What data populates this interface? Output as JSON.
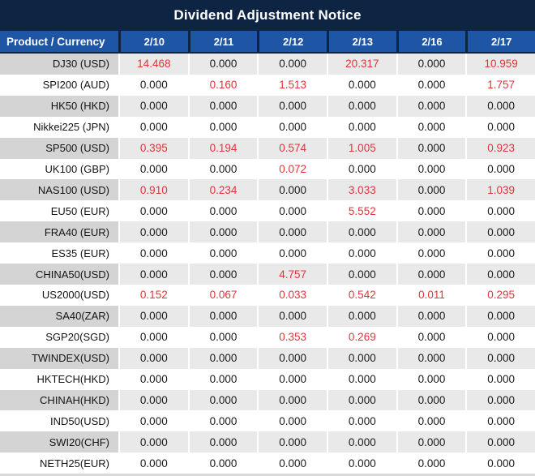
{
  "title_bar": {
    "title": "Dividend Adjustment Notice"
  },
  "colors": {
    "title_navy": "#0e2443",
    "header_blue": "#1e55a4",
    "stripe_label_gray": "#d4d4d4",
    "stripe_cell_gray": "#e9e9e9",
    "highlight_red": "#e0343a",
    "text_black": "#1a1a1a"
  },
  "chart_data": {
    "type": "table",
    "title": "Dividend Adjustment Notice",
    "columns": [
      "Product / Currency",
      "2/10",
      "2/11",
      "2/12",
      "2/13",
      "2/16",
      "2/17"
    ],
    "rows": [
      {
        "product": "DJ30 (USD)",
        "values": [
          "14.468",
          "0.000",
          "0.000",
          "20.317",
          "0.000",
          "10.959"
        ],
        "highlight": [
          true,
          false,
          false,
          true,
          false,
          true
        ]
      },
      {
        "product": "SPI200 (AUD)",
        "values": [
          "0.000",
          "0.160",
          "1.513",
          "0.000",
          "0.000",
          "1.757"
        ],
        "highlight": [
          false,
          true,
          true,
          false,
          false,
          true
        ]
      },
      {
        "product": "HK50 (HKD)",
        "values": [
          "0.000",
          "0.000",
          "0.000",
          "0.000",
          "0.000",
          "0.000"
        ],
        "highlight": [
          false,
          false,
          false,
          false,
          false,
          false
        ]
      },
      {
        "product": "Nikkei225 (JPN)",
        "values": [
          "0.000",
          "0.000",
          "0.000",
          "0.000",
          "0.000",
          "0.000"
        ],
        "highlight": [
          false,
          false,
          false,
          false,
          false,
          false
        ]
      },
      {
        "product": "SP500 (USD)",
        "values": [
          "0.395",
          "0.194",
          "0.574",
          "1.005",
          "0.000",
          "0.923"
        ],
        "highlight": [
          true,
          true,
          true,
          true,
          false,
          true
        ]
      },
      {
        "product": "UK100 (GBP)",
        "values": [
          "0.000",
          "0.000",
          "0.072",
          "0.000",
          "0.000",
          "0.000"
        ],
        "highlight": [
          false,
          false,
          true,
          false,
          false,
          false
        ]
      },
      {
        "product": "NAS100 (USD)",
        "values": [
          "0.910",
          "0.234",
          "0.000",
          "3.033",
          "0.000",
          "1.039"
        ],
        "highlight": [
          true,
          true,
          false,
          true,
          false,
          true
        ]
      },
      {
        "product": "EU50 (EUR)",
        "values": [
          "0.000",
          "0.000",
          "0.000",
          "5.552",
          "0.000",
          "0.000"
        ],
        "highlight": [
          false,
          false,
          false,
          true,
          false,
          false
        ]
      },
      {
        "product": "FRA40 (EUR)",
        "values": [
          "0.000",
          "0.000",
          "0.000",
          "0.000",
          "0.000",
          "0.000"
        ],
        "highlight": [
          false,
          false,
          false,
          false,
          false,
          false
        ]
      },
      {
        "product": "ES35 (EUR)",
        "values": [
          "0.000",
          "0.000",
          "0.000",
          "0.000",
          "0.000",
          "0.000"
        ],
        "highlight": [
          false,
          false,
          false,
          false,
          false,
          false
        ]
      },
      {
        "product": "CHINA50(USD)",
        "values": [
          "0.000",
          "0.000",
          "4.757",
          "0.000",
          "0.000",
          "0.000"
        ],
        "highlight": [
          false,
          false,
          true,
          false,
          false,
          false
        ]
      },
      {
        "product": "US2000(USD)",
        "values": [
          "0.152",
          "0.067",
          "0.033",
          "0.542",
          "0.011",
          "0.295"
        ],
        "highlight": [
          true,
          true,
          true,
          true,
          true,
          true
        ]
      },
      {
        "product": "SA40(ZAR)",
        "values": [
          "0.000",
          "0.000",
          "0.000",
          "0.000",
          "0.000",
          "0.000"
        ],
        "highlight": [
          false,
          false,
          false,
          false,
          false,
          false
        ]
      },
      {
        "product": "SGP20(SGD)",
        "values": [
          "0.000",
          "0.000",
          "0.353",
          "0.269",
          "0.000",
          "0.000"
        ],
        "highlight": [
          false,
          false,
          true,
          true,
          false,
          false
        ]
      },
      {
        "product": "TWINDEX(USD)",
        "values": [
          "0.000",
          "0.000",
          "0.000",
          "0.000",
          "0.000",
          "0.000"
        ],
        "highlight": [
          false,
          false,
          false,
          false,
          false,
          false
        ]
      },
      {
        "product": "HKTECH(HKD)",
        "values": [
          "0.000",
          "0.000",
          "0.000",
          "0.000",
          "0.000",
          "0.000"
        ],
        "highlight": [
          false,
          false,
          false,
          false,
          false,
          false
        ]
      },
      {
        "product": "CHINAH(HKD)",
        "values": [
          "0.000",
          "0.000",
          "0.000",
          "0.000",
          "0.000",
          "0.000"
        ],
        "highlight": [
          false,
          false,
          false,
          false,
          false,
          false
        ]
      },
      {
        "product": "IND50(USD)",
        "values": [
          "0.000",
          "0.000",
          "0.000",
          "0.000",
          "0.000",
          "0.000"
        ],
        "highlight": [
          false,
          false,
          false,
          false,
          false,
          false
        ]
      },
      {
        "product": "SWI20(CHF)",
        "values": [
          "0.000",
          "0.000",
          "0.000",
          "0.000",
          "0.000",
          "0.000"
        ],
        "highlight": [
          false,
          false,
          false,
          false,
          false,
          false
        ]
      },
      {
        "product": "NETH25(EUR)",
        "values": [
          "0.000",
          "0.000",
          "0.000",
          "0.000",
          "0.000",
          "0.000"
        ],
        "highlight": [
          false,
          false,
          false,
          false,
          false,
          false
        ]
      }
    ]
  }
}
